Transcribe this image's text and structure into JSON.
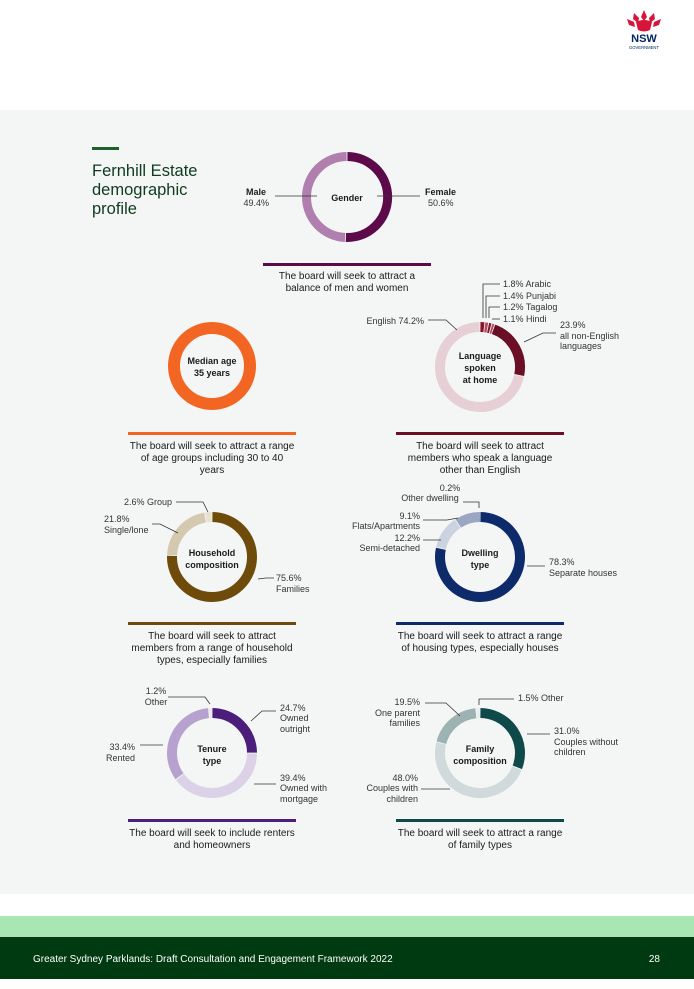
{
  "logo": {
    "name": "nsw-waratah-logo",
    "text": "NSW",
    "subtext": "GOVERNMENT"
  },
  "title": "Fernhill Estate demographic profile",
  "colors": {
    "accent": "#1f5f2a",
    "footer": "#003a10",
    "footer_band": "#a8e6b4"
  },
  "charts": {
    "gender": {
      "center": "Gender",
      "labels": {
        "male_name": "Male",
        "male_value": "49.4%",
        "female_name": "Female",
        "female_value": "50.6%"
      },
      "caption": "The board will seek to attract a balance of men and women"
    },
    "age": {
      "center_line1": "Median age",
      "center_line2": "35 years",
      "caption": "The board will seek to attract a range of age groups including 30 to 40 years"
    },
    "language": {
      "center_line1": "Language",
      "center_line2": "spoken",
      "center_line3": "at home",
      "labels": {
        "english": "English 74.2%",
        "arabic": "1.8% Arabic",
        "punjabi": "1.4% Punjabi",
        "tagalog": "1.2% Tagalog",
        "hindi": "1.1% Hindi",
        "other_value": "23.9%",
        "other_line1": "all non-English",
        "other_line2": "languages"
      },
      "caption": "The board will seek to attract members who speak a language other than English"
    },
    "household": {
      "center_line1": "Household",
      "center_line2": "composition",
      "labels": {
        "group": "2.6% Group",
        "single_value": "21.8%",
        "single_name": "Single/lone",
        "families_value": "75.6%",
        "families_name": "Families"
      },
      "caption": "The board will seek to attract members from a range of household types, especially families"
    },
    "dwelling": {
      "center_line1": "Dwelling",
      "center_line2": "type",
      "labels": {
        "other_value": "0.2%",
        "other_name": "Other dwelling",
        "flats_value": "9.1%",
        "flats_name": "Flats/Apartments",
        "semi_value": "12.2%",
        "semi_name": "Semi-detached",
        "separate_value": "78.3%",
        "separate_name": "Separate houses"
      },
      "caption": "The board will seek to attract a range of housing types, especially houses"
    },
    "tenure": {
      "center_line1": "Tenure",
      "center_line2": "type",
      "labels": {
        "other_value": "1.2%",
        "other_name": "Other",
        "outright_value": "24.7%",
        "outright_line1": "Owned",
        "outright_line2": "outright",
        "rented_value": "33.4%",
        "rented_name": "Rented",
        "mortgage_value": "39.4%",
        "mortgage_line1": "Owned with",
        "mortgage_line2": "mortgage"
      },
      "caption": "The board will seek to include renters and homeowners"
    },
    "family": {
      "center_line1": "Family",
      "center_line2": "composition",
      "labels": {
        "other": "1.5% Other",
        "without_value": "31.0%",
        "without_line1": "Couples without",
        "without_line2": "children",
        "oneparent_value": "19.5%",
        "oneparent_line1": "One parent",
        "oneparent_line2": "families",
        "with_value": "48.0%",
        "with_line1": "Couples with",
        "with_line2": "children"
      },
      "caption": "The board will seek to attract a range of family types"
    }
  },
  "chart_data": [
    {
      "type": "pie",
      "center": "Gender",
      "series": [
        {
          "name": "Female",
          "value": 50.6,
          "color": "#5c0a4a"
        },
        {
          "name": "Male",
          "value": 49.4,
          "color": "#b07fae"
        }
      ]
    },
    {
      "type": "pie",
      "center": "Median age 35 years",
      "series": [
        {
          "name": "",
          "value": 100,
          "color": "#f26522"
        }
      ]
    },
    {
      "type": "pie",
      "center": "Language spoken at home",
      "series": [
        {
          "name": "Arabic",
          "value": 1.8,
          "color": "#8a1328"
        },
        {
          "name": "Punjabi",
          "value": 1.4,
          "color": "#b04a5e"
        },
        {
          "name": "Tagalog",
          "value": 1.2,
          "color": "#8a1328"
        },
        {
          "name": "Hindi",
          "value": 1.1,
          "color": "#b04a5e"
        },
        {
          "name": "all non-English languages",
          "value": 23.9,
          "color": "#6b0f26"
        },
        {
          "name": "English",
          "value": 74.2,
          "color": "#e6d0d6"
        }
      ]
    },
    {
      "type": "pie",
      "center": "Household composition",
      "series": [
        {
          "name": "Families",
          "value": 75.6,
          "color": "#6e4b0a"
        },
        {
          "name": "Single/lone",
          "value": 21.8,
          "color": "#d4c8ae"
        },
        {
          "name": "Group",
          "value": 2.6,
          "color": "#e8e1cf"
        }
      ]
    },
    {
      "type": "pie",
      "center": "Dwelling type",
      "series": [
        {
          "name": "Separate houses",
          "value": 78.3,
          "color": "#0d2a6b"
        },
        {
          "name": "Semi-detached",
          "value": 12.2,
          "color": "#ccd3e0"
        },
        {
          "name": "Flats/Apartments",
          "value": 9.1,
          "color": "#9aa6c2"
        },
        {
          "name": "Other dwelling",
          "value": 0.2,
          "color": "#0d2a6b"
        }
      ]
    },
    {
      "type": "pie",
      "center": "Tenure type",
      "series": [
        {
          "name": "Owned outright",
          "value": 24.7,
          "color": "#4a1e7a"
        },
        {
          "name": "Owned with mortgage",
          "value": 39.4,
          "color": "#dcd2e8"
        },
        {
          "name": "Rented",
          "value": 33.4,
          "color": "#b7a2cf"
        },
        {
          "name": "Other",
          "value": 1.2,
          "color": "#ece7f2"
        }
      ]
    },
    {
      "type": "pie",
      "center": "Family composition",
      "series": [
        {
          "name": "Couples without children",
          "value": 31.0,
          "color": "#0f4a4a"
        },
        {
          "name": "Couples with children",
          "value": 48.0,
          "color": "#d0dadb"
        },
        {
          "name": "One parent families",
          "value": 19.5,
          "color": "#9db2b3"
        },
        {
          "name": "Other",
          "value": 1.5,
          "color": "#e9eeee"
        }
      ]
    }
  ],
  "footer": {
    "text": "Greater Sydney Parklands: Draft Consultation and Engagement Framework 2022",
    "page": "28"
  }
}
